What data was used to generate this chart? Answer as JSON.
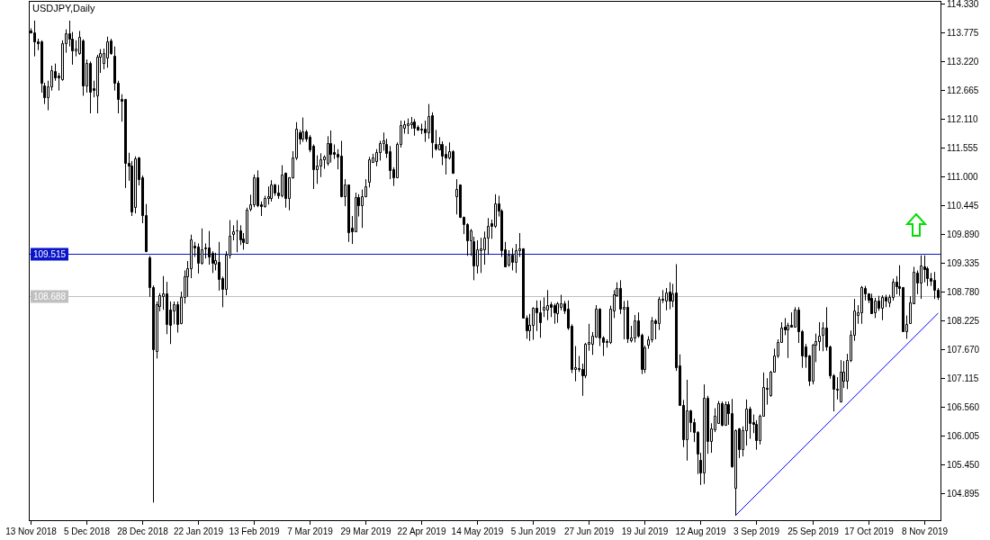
{
  "chart_data": {
    "type": "candlestick",
    "title": "USDJPY,Daily",
    "color": "#000000",
    "categories": [
      "13 Nov 2018",
      null,
      null,
      null,
      null,
      null,
      null,
      null,
      null,
      null,
      null,
      null,
      null,
      null,
      null,
      null,
      "5 Dec 2018",
      null,
      null,
      null,
      null,
      null,
      null,
      null,
      null,
      null,
      null,
      null,
      null,
      null,
      null,
      null,
      "28 Dec 2018",
      null,
      null,
      null,
      null,
      null,
      null,
      null,
      null,
      null,
      null,
      null,
      null,
      null,
      null,
      null,
      "22 Jan 2019",
      null,
      null,
      null,
      null,
      null,
      null,
      null,
      null,
      null,
      null,
      null,
      null,
      null,
      null,
      null,
      "13 Feb 2019",
      null,
      null,
      null,
      null,
      null,
      null,
      null,
      null,
      null,
      null,
      null,
      null,
      null,
      null,
      null,
      "7 Mar 2019",
      null,
      null,
      null,
      null,
      null,
      null,
      null,
      null,
      null,
      null,
      null,
      null,
      null,
      null,
      null,
      "29 Mar 2019",
      null,
      null,
      null,
      null,
      null,
      null,
      null,
      null,
      null,
      null,
      null,
      null,
      null,
      null,
      null,
      "22 Apr 2019",
      null,
      null,
      null,
      null,
      null,
      null,
      null,
      null,
      null,
      null,
      null,
      null,
      null,
      null,
      null,
      "14 May 2019",
      null,
      null,
      null,
      null,
      null,
      null,
      null,
      null,
      null,
      null,
      null,
      null,
      null,
      null,
      null,
      "5 Jun 2019",
      null,
      null,
      null,
      null,
      null,
      null,
      null,
      null,
      null,
      null,
      null,
      null,
      null,
      null,
      null,
      "27 Jun 2019",
      null,
      null,
      null,
      null,
      null,
      null,
      null,
      null,
      null,
      null,
      null,
      null,
      null,
      null,
      null,
      "19 Jul 2019",
      null,
      null,
      null,
      null,
      null,
      null,
      null,
      null,
      null,
      null,
      null,
      null,
      null,
      null,
      null,
      "12 Aug 2019",
      null,
      null,
      null,
      null,
      null,
      null,
      null,
      null,
      null,
      null,
      null,
      null,
      null,
      null,
      null,
      "3 Sep 2019",
      null,
      null,
      null,
      null,
      null,
      null,
      null,
      null,
      null,
      null,
      null,
      null,
      null,
      null,
      null,
      "25 Sep 2019",
      null,
      null,
      null,
      null,
      null,
      null,
      null,
      null,
      null,
      null,
      null,
      null,
      null,
      null,
      null,
      "17 Oct 2019",
      null,
      null,
      null,
      null,
      null,
      null,
      null,
      null,
      null,
      null,
      null,
      null,
      null,
      null,
      null,
      "8 Nov 2019",
      null,
      null,
      null,
      null
    ],
    "ohlc": [
      [
        113.82,
        113.86,
        113.76,
        113.78
      ],
      [
        113.79,
        114.01,
        113.32,
        113.6
      ],
      [
        113.6,
        113.66,
        113.44,
        113.57
      ],
      [
        113.6,
        113.63,
        112.62,
        112.81
      ],
      [
        112.76,
        112.81,
        112.4,
        112.53
      ],
      [
        112.54,
        112.85,
        112.28,
        112.74
      ],
      [
        112.74,
        113.14,
        112.66,
        113.05
      ],
      [
        113.03,
        113.18,
        112.85,
        112.91
      ],
      [
        112.95,
        113.0,
        112.66,
        112.91
      ],
      [
        112.88,
        113.63,
        112.85,
        113.57
      ],
      [
        113.57,
        113.84,
        113.39,
        113.76
      ],
      [
        113.76,
        114.01,
        113.51,
        113.66
      ],
      [
        113.66,
        113.79,
        113.16,
        113.44
      ],
      [
        113.44,
        113.63,
        113.32,
        113.47
      ],
      [
        113.38,
        113.81,
        113.35,
        113.7
      ],
      [
        113.63,
        113.65,
        112.56,
        112.75
      ],
      [
        112.75,
        113.26,
        112.62,
        113.19
      ],
      [
        113.2,
        113.22,
        112.22,
        112.64
      ],
      [
        112.7,
        112.85,
        112.53,
        112.67
      ],
      [
        112.56,
        113.35,
        112.22,
        113.32
      ],
      [
        113.32,
        113.46,
        113.0,
        113.38
      ],
      [
        113.2,
        113.47,
        113.07,
        113.38
      ],
      [
        113.3,
        113.7,
        113.1,
        113.6
      ],
      [
        113.62,
        113.66,
        113.35,
        113.38
      ],
      [
        113.33,
        113.51,
        112.66,
        112.81
      ],
      [
        112.81,
        112.85,
        112.22,
        112.5
      ],
      [
        112.5,
        112.59,
        112.06,
        112.47
      ],
      [
        112.49,
        112.5,
        110.78,
        111.27
      ],
      [
        111.27,
        111.46,
        110.92,
        111.21
      ],
      [
        111.21,
        111.3,
        110.24,
        110.32
      ],
      [
        110.42,
        111.39,
        110.29,
        111.35
      ],
      [
        111.36,
        111.38,
        110.83,
        110.95
      ],
      [
        110.98,
        111.02,
        110.1,
        110.26
      ],
      [
        110.26,
        110.47,
        109.54,
        109.57
      ],
      [
        109.44,
        109.47,
        108.68,
        108.87
      ],
      [
        108.87,
        108.9,
        104.71,
        107.67
      ],
      [
        107.64,
        108.59,
        107.49,
        108.53
      ],
      [
        108.5,
        108.75,
        108.4,
        108.72
      ],
      [
        108.7,
        109.08,
        108.43,
        108.74
      ],
      [
        108.75,
        108.97,
        107.96,
        108.15
      ],
      [
        108.43,
        108.59,
        107.77,
        108.14
      ],
      [
        108.41,
        108.59,
        108.15,
        108.53
      ],
      [
        108.53,
        108.59,
        107.99,
        108.15
      ],
      [
        108.18,
        108.78,
        108.15,
        108.68
      ],
      [
        108.68,
        109.19,
        108.55,
        109.08
      ],
      [
        109.08,
        109.37,
        108.68,
        109.24
      ],
      [
        109.23,
        109.88,
        109.04,
        109.78
      ],
      [
        109.67,
        109.74,
        109.45,
        109.64
      ],
      [
        109.65,
        109.71,
        109.13,
        109.34
      ],
      [
        109.34,
        110.0,
        109.3,
        109.6
      ],
      [
        109.61,
        109.71,
        109.42,
        109.64
      ],
      [
        109.64,
        109.95,
        109.3,
        109.45
      ],
      [
        109.52,
        109.56,
        109.14,
        109.33
      ],
      [
        109.32,
        109.53,
        109.19,
        109.39
      ],
      [
        109.36,
        109.74,
        108.8,
        109.03
      ],
      [
        109.05,
        109.07,
        108.48,
        108.84
      ],
      [
        108.84,
        109.56,
        108.71,
        109.49
      ],
      [
        109.49,
        110.16,
        109.42,
        109.86
      ],
      [
        109.89,
        110.06,
        109.77,
        109.95
      ],
      [
        109.96,
        110.16,
        109.54,
        109.97
      ],
      [
        109.97,
        110.06,
        109.68,
        109.78
      ],
      [
        109.81,
        109.91,
        109.59,
        109.74
      ],
      [
        109.72,
        110.4,
        109.71,
        110.36
      ],
      [
        110.37,
        110.65,
        110.33,
        110.47
      ],
      [
        110.47,
        111.04,
        110.41,
        110.99
      ],
      [
        110.99,
        111.12,
        110.41,
        110.45
      ],
      [
        110.47,
        110.52,
        110.24,
        110.43
      ],
      [
        110.43,
        110.63,
        110.4,
        110.59
      ],
      [
        110.59,
        110.81,
        110.46,
        110.62
      ],
      [
        110.59,
        110.93,
        110.52,
        110.84
      ],
      [
        110.85,
        110.86,
        110.63,
        110.69
      ],
      [
        110.69,
        110.84,
        110.57,
        110.64
      ],
      [
        110.64,
        111.22,
        110.6,
        111.04
      ],
      [
        111.07,
        111.08,
        110.4,
        110.58
      ],
      [
        110.58,
        110.99,
        110.35,
        110.98
      ],
      [
        110.98,
        111.49,
        110.96,
        111.37
      ],
      [
        111.37,
        112.05,
        111.32,
        111.93
      ],
      [
        111.86,
        111.9,
        111.62,
        111.73
      ],
      [
        111.73,
        112.14,
        111.67,
        111.88
      ],
      [
        111.88,
        111.9,
        111.67,
        111.74
      ],
      [
        111.77,
        111.8,
        111.47,
        111.53
      ],
      [
        111.59,
        111.62,
        110.76,
        111.14
      ],
      [
        111.14,
        111.41,
        110.86,
        111.21
      ],
      [
        111.21,
        111.45,
        110.99,
        111.34
      ],
      [
        111.34,
        111.41,
        111.15,
        111.38
      ],
      [
        111.26,
        111.78,
        111.21,
        111.65
      ],
      [
        111.65,
        111.89,
        111.27,
        111.43
      ],
      [
        111.47,
        111.62,
        111.34,
        111.43
      ],
      [
        111.43,
        111.53,
        111.14,
        111.39
      ],
      [
        111.4,
        111.69,
        110.6,
        110.62
      ],
      [
        110.62,
        110.95,
        110.43,
        110.85
      ],
      [
        110.85,
        110.85,
        109.74,
        109.93
      ],
      [
        110.01,
        110.24,
        109.7,
        109.95
      ],
      [
        109.95,
        110.69,
        109.94,
        110.6
      ],
      [
        110.6,
        110.66,
        110.23,
        110.45
      ],
      [
        110.45,
        110.75,
        110.01,
        110.63
      ],
      [
        110.62,
        110.95,
        110.6,
        110.82
      ],
      [
        110.9,
        111.38,
        110.79,
        111.34
      ],
      [
        111.28,
        111.44,
        111.27,
        111.36
      ],
      [
        111.3,
        111.53,
        111.2,
        111.47
      ],
      [
        111.47,
        111.69,
        111.31,
        111.64
      ],
      [
        111.64,
        111.85,
        111.5,
        111.7
      ],
      [
        111.63,
        111.73,
        111.36,
        111.45
      ],
      [
        111.49,
        111.59,
        110.95,
        111.12
      ],
      [
        111.14,
        111.18,
        110.82,
        110.99
      ],
      [
        110.99,
        111.66,
        110.98,
        111.63
      ],
      [
        111.63,
        112.08,
        111.56,
        111.99
      ],
      [
        111.95,
        112.08,
        111.83,
        112.01
      ],
      [
        111.99,
        112.12,
        111.82,
        112.03
      ],
      [
        112.01,
        112.15,
        111.92,
        112.05
      ],
      [
        112.07,
        112.11,
        111.79,
        111.95
      ],
      [
        111.96,
        111.99,
        111.88,
        111.9
      ],
      [
        111.93,
        112.02,
        111.82,
        111.9
      ],
      [
        111.93,
        112.08,
        111.67,
        111.85
      ],
      [
        111.85,
        112.4,
        111.73,
        112.17
      ],
      [
        112.18,
        112.24,
        111.36,
        111.66
      ],
      [
        111.63,
        111.9,
        111.5,
        111.55
      ],
      [
        111.53,
        111.76,
        111.51,
        111.63
      ],
      [
        111.63,
        111.68,
        111.22,
        111.41
      ],
      [
        111.43,
        111.59,
        111.04,
        111.37
      ],
      [
        111.37,
        111.66,
        111.33,
        111.49
      ],
      [
        111.49,
        111.51,
        111.05,
        111.08
      ],
      [
        110.62,
        110.95,
        110.27,
        110.76
      ],
      [
        110.85,
        110.85,
        110.2,
        110.23
      ],
      [
        110.23,
        110.23,
        109.89,
        110.08
      ],
      [
        110.08,
        110.1,
        109.47,
        109.77
      ],
      [
        109.77,
        109.99,
        109.47,
        109.97
      ],
      [
        109.75,
        109.84,
        109.0,
        109.29
      ],
      [
        109.29,
        109.77,
        109.13,
        109.6
      ],
      [
        109.58,
        109.82,
        109.14,
        109.61
      ],
      [
        109.59,
        109.94,
        109.3,
        109.83
      ],
      [
        109.83,
        110.2,
        109.49,
        110.04
      ],
      [
        110.1,
        110.17,
        109.8,
        110.04
      ],
      [
        110.04,
        110.66,
        110.01,
        110.49
      ],
      [
        110.49,
        110.63,
        110.23,
        110.34
      ],
      [
        110.35,
        110.37,
        109.45,
        109.58
      ],
      [
        109.6,
        109.74,
        109.26,
        109.27
      ],
      [
        109.31,
        109.58,
        109.26,
        109.49
      ],
      [
        109.49,
        109.62,
        109.19,
        109.35
      ],
      [
        109.35,
        109.7,
        109.14,
        109.58
      ],
      [
        109.58,
        109.91,
        109.45,
        109.62
      ],
      [
        109.62,
        109.62,
        108.26,
        108.27
      ],
      [
        108.27,
        108.32,
        107.87,
        108.04
      ],
      [
        108.04,
        108.35,
        107.83,
        108.14
      ],
      [
        108.13,
        108.48,
        107.85,
        108.46
      ],
      [
        108.46,
        108.61,
        108.02,
        108.39
      ],
      [
        108.39,
        108.61,
        107.89,
        108.19
      ],
      [
        108.43,
        108.67,
        108.29,
        108.48
      ],
      [
        108.43,
        108.81,
        108.23,
        108.52
      ],
      [
        108.54,
        108.58,
        108.29,
        108.48
      ],
      [
        108.52,
        108.55,
        108.16,
        108.38
      ],
      [
        108.37,
        108.58,
        108.18,
        108.55
      ],
      [
        108.48,
        108.72,
        108.42,
        108.55
      ],
      [
        108.55,
        108.6,
        108.35,
        108.42
      ],
      [
        108.45,
        108.61,
        108.04,
        108.09
      ],
      [
        108.12,
        108.15,
        107.21,
        107.28
      ],
      [
        107.28,
        107.73,
        107.05,
        107.33
      ],
      [
        107.31,
        107.54,
        107.23,
        107.28
      ],
      [
        107.29,
        107.39,
        106.77,
        107.16
      ],
      [
        107.16,
        107.79,
        107.11,
        107.77
      ],
      [
        107.77,
        108.16,
        107.64,
        107.8
      ],
      [
        107.77,
        108.0,
        107.56,
        107.93
      ],
      [
        107.92,
        108.52,
        107.89,
        108.45
      ],
      [
        108.45,
        108.46,
        107.73,
        107.89
      ],
      [
        107.89,
        107.92,
        107.54,
        107.81
      ],
      [
        107.82,
        107.86,
        107.7,
        107.8
      ],
      [
        107.8,
        108.51,
        107.77,
        108.45
      ],
      [
        108.42,
        108.81,
        108.27,
        108.73
      ],
      [
        108.71,
        108.96,
        108.68,
        108.85
      ],
      [
        108.85,
        109.0,
        108.35,
        108.45
      ],
      [
        108.45,
        108.6,
        107.86,
        108.49
      ],
      [
        108.49,
        108.61,
        107.79,
        107.87
      ],
      [
        107.85,
        108.12,
        107.8,
        107.9
      ],
      [
        107.9,
        108.33,
        107.8,
        108.23
      ],
      [
        108.23,
        108.38,
        107.89,
        107.93
      ],
      [
        107.94,
        107.97,
        107.19,
        107.28
      ],
      [
        107.29,
        107.74,
        107.21,
        107.7
      ],
      [
        107.75,
        107.92,
        107.68,
        107.86
      ],
      [
        107.86,
        108.29,
        107.8,
        108.22
      ],
      [
        108.22,
        108.25,
        107.86,
        108.18
      ],
      [
        108.18,
        108.68,
        108.04,
        108.64
      ],
      [
        108.65,
        108.81,
        108.56,
        108.62
      ],
      [
        108.61,
        108.85,
        108.42,
        108.77
      ],
      [
        108.78,
        108.96,
        108.44,
        108.6
      ],
      [
        108.61,
        108.93,
        108.48,
        108.75
      ],
      [
        108.77,
        109.31,
        107.25,
        107.33
      ],
      [
        107.35,
        107.57,
        106.59,
        106.6
      ],
      [
        106.59,
        106.69,
        105.78,
        105.94
      ],
      [
        105.94,
        107.08,
        105.52,
        106.48
      ],
      [
        106.48,
        106.5,
        106.07,
        106.27
      ],
      [
        106.27,
        106.33,
        105.88,
        106.07
      ],
      [
        106.08,
        106.09,
        105.26,
        105.65
      ],
      [
        105.54,
        105.67,
        105.05,
        105.29
      ],
      [
        105.29,
        106.99,
        105.07,
        106.74
      ],
      [
        106.74,
        106.77,
        105.65,
        105.89
      ],
      [
        105.89,
        106.24,
        105.67,
        106.14
      ],
      [
        106.12,
        106.53,
        106.07,
        106.38
      ],
      [
        106.25,
        106.67,
        106.24,
        106.63
      ],
      [
        106.63,
        106.66,
        106.18,
        106.21
      ],
      [
        106.21,
        106.66,
        106.19,
        106.61
      ],
      [
        106.61,
        106.66,
        106.21,
        106.44
      ],
      [
        106.44,
        106.71,
        105.38,
        105.42
      ],
      [
        105.0,
        106.12,
        104.46,
        106.11
      ],
      [
        106.14,
        106.15,
        105.57,
        105.75
      ],
      [
        105.75,
        106.18,
        105.6,
        106.11
      ],
      [
        106.11,
        106.7,
        105.81,
        106.52
      ],
      [
        106.52,
        106.56,
        105.94,
        106.25
      ],
      [
        106.27,
        106.41,
        106.05,
        106.23
      ],
      [
        106.23,
        106.3,
        105.73,
        105.92
      ],
      [
        105.92,
        106.41,
        105.83,
        106.38
      ],
      [
        106.38,
        107.22,
        106.37,
        106.94
      ],
      [
        106.93,
        107.11,
        106.6,
        106.91
      ],
      [
        106.79,
        107.25,
        106.75,
        107.23
      ],
      [
        107.23,
        107.68,
        107.23,
        107.54
      ],
      [
        107.54,
        107.86,
        107.5,
        107.81
      ],
      [
        107.81,
        108.19,
        107.8,
        108.09
      ],
      [
        108.1,
        108.27,
        107.94,
        108.06
      ],
      [
        108.06,
        108.18,
        107.5,
        108.13
      ],
      [
        108.13,
        108.38,
        108.09,
        108.1
      ],
      [
        108.1,
        108.48,
        108.09,
        108.44
      ],
      [
        108.44,
        108.48,
        107.79,
        108.02
      ],
      [
        108.02,
        108.04,
        107.31,
        107.54
      ],
      [
        107.73,
        107.77,
        107.31,
        107.53
      ],
      [
        107.54,
        107.56,
        106.96,
        107.06
      ],
      [
        107.06,
        107.77,
        106.99,
        107.75
      ],
      [
        107.75,
        107.97,
        107.42,
        107.83
      ],
      [
        107.83,
        108.19,
        107.64,
        107.93
      ],
      [
        107.94,
        108.19,
        107.63,
        108.08
      ],
      [
        108.08,
        108.48,
        107.64,
        107.73
      ],
      [
        107.73,
        107.74,
        107.1,
        107.16
      ],
      [
        107.17,
        107.19,
        106.47,
        106.9
      ],
      [
        106.91,
        107.13,
        106.7,
        106.89
      ],
      [
        106.66,
        107.46,
        106.64,
        107.23
      ],
      [
        107.06,
        107.44,
        106.92,
        107.23
      ],
      [
        107.06,
        107.58,
        106.9,
        107.46
      ],
      [
        107.46,
        108.03,
        107.42,
        107.94
      ],
      [
        107.94,
        108.64,
        107.83,
        108.42
      ],
      [
        108.33,
        108.52,
        108.16,
        108.39
      ],
      [
        108.38,
        108.89,
        108.16,
        108.87
      ],
      [
        108.85,
        108.89,
        108.61,
        108.74
      ],
      [
        108.74,
        108.75,
        108.56,
        108.62
      ],
      [
        108.66,
        108.74,
        108.35,
        108.37
      ],
      [
        108.38,
        108.66,
        108.27,
        108.6
      ],
      [
        108.6,
        108.7,
        108.41,
        108.47
      ],
      [
        108.47,
        108.71,
        108.23,
        108.68
      ],
      [
        108.68,
        108.72,
        108.48,
        108.6
      ],
      [
        108.58,
        108.72,
        108.48,
        108.68
      ],
      [
        108.68,
        109.03,
        108.61,
        108.98
      ],
      [
        108.98,
        109.08,
        108.73,
        108.89
      ],
      [
        108.89,
        109.29,
        108.7,
        108.85
      ],
      [
        108.87,
        108.87,
        108.0,
        108.02
      ],
      [
        108.02,
        108.32,
        107.87,
        108.16
      ],
      [
        108.18,
        108.69,
        108.16,
        108.58
      ],
      [
        108.56,
        109.26,
        108.56,
        109.16
      ],
      [
        109.14,
        109.19,
        108.73,
        108.96
      ],
      [
        108.96,
        109.48,
        108.64,
        109.29
      ],
      [
        109.27,
        109.48,
        108.96,
        109.22
      ],
      [
        109.23,
        109.26,
        108.89,
        109.04
      ],
      [
        109.04,
        109.14,
        108.89,
        108.99
      ],
      [
        109.0,
        109.16,
        108.64,
        108.81
      ],
      [
        108.81,
        108.85,
        108.62,
        108.68
      ]
    ],
    "series": [
      {
        "type": "line",
        "color": "#0000ff",
        "values": [
          null,
          null,
          null,
          null,
          null,
          null,
          null,
          null,
          null,
          null,
          null,
          null,
          null,
          null,
          null,
          null,
          null,
          null,
          null,
          null,
          null,
          null,
          null,
          null,
          null,
          null,
          null,
          null,
          null,
          null,
          null,
          null,
          null,
          null,
          null,
          null,
          null,
          null,
          null,
          null,
          null,
          null,
          null,
          null,
          null,
          null,
          null,
          null,
          null,
          null,
          null,
          null,
          null,
          null,
          null,
          null,
          null,
          null,
          null,
          null,
          null,
          null,
          null,
          null,
          null,
          null,
          null,
          null,
          null,
          null,
          null,
          null,
          null,
          null,
          null,
          null,
          null,
          null,
          null,
          null,
          null,
          null,
          null,
          null,
          null,
          null,
          null,
          null,
          null,
          null,
          null,
          null,
          null,
          null,
          null,
          null,
          null,
          null,
          null,
          null,
          null,
          null,
          null,
          null,
          null,
          null,
          null,
          null,
          null,
          null,
          null,
          null,
          null,
          null,
          null,
          null,
          null,
          null,
          null,
          null,
          null,
          null,
          null,
          null,
          null,
          null,
          null,
          null,
          null,
          null,
          null,
          null,
          null,
          null,
          null,
          null,
          null,
          null,
          null,
          null,
          null,
          null,
          null,
          null,
          null,
          null,
          null,
          null,
          null,
          null,
          null,
          null,
          null,
          null,
          null,
          null,
          null,
          null,
          null,
          null,
          null,
          null,
          null,
          null,
          null,
          null,
          null,
          null,
          null,
          null,
          null,
          null,
          null,
          null,
          null,
          null,
          null,
          null,
          null,
          null,
          null,
          null,
          null,
          null,
          null,
          null,
          null,
          null,
          null,
          null,
          null,
          null,
          null,
          null,
          null,
          null,
          null,
          null,
          null,
          null,
          null,
          null,
          104.46,
          null,
          null,
          null,
          null,
          null,
          null,
          null,
          null,
          null,
          null,
          null,
          null,
          null,
          null,
          null,
          null,
          null,
          null,
          null,
          null,
          null,
          null,
          null,
          null,
          null,
          null,
          null,
          null,
          null,
          null,
          null,
          null,
          null,
          null,
          null,
          null,
          null,
          null,
          null,
          null,
          null,
          null,
          null,
          null,
          null,
          null,
          null,
          null,
          null,
          null,
          null,
          null,
          null,
          null,
          null,
          null,
          null,
          108.36
        ]
      }
    ],
    "ylim": [
      104.37,
      114.39
    ],
    "yticks": [
      {
        "value": 104.895,
        "label": "104.895"
      },
      {
        "value": 105.45,
        "label": "105.450"
      },
      {
        "value": 106.005,
        "label": "106.005"
      },
      {
        "value": 106.56,
        "label": "106.560"
      },
      {
        "value": 107.115,
        "label": "107.115"
      },
      {
        "value": 107.67,
        "label": "107.670"
      },
      {
        "value": 108.225,
        "label": "108.225"
      },
      {
        "value": 108.78,
        "label": "108.780"
      },
      {
        "value": 109.335,
        "label": "109.335"
      },
      {
        "value": 109.89,
        "label": "109.890"
      },
      {
        "value": 110.445,
        "label": "110.445"
      },
      {
        "value": 111,
        "label": "111.000"
      },
      {
        "value": 111.555,
        "label": "111.555"
      },
      {
        "value": 112.11,
        "label": "112.110"
      },
      {
        "value": 112.665,
        "label": "112.665"
      },
      {
        "value": 113.22,
        "label": "113.220"
      },
      {
        "value": 113.775,
        "label": "113.775"
      },
      {
        "value": 114.33,
        "label": "114.330"
      }
    ],
    "ref_lines": [
      {
        "axis": "y",
        "value": 109.515,
        "label": "109.515",
        "color": "#0a14c8"
      },
      {
        "axis": "y",
        "value": 108.688,
        "label": "108.688",
        "color": "#c0c0c0"
      }
    ]
  }
}
